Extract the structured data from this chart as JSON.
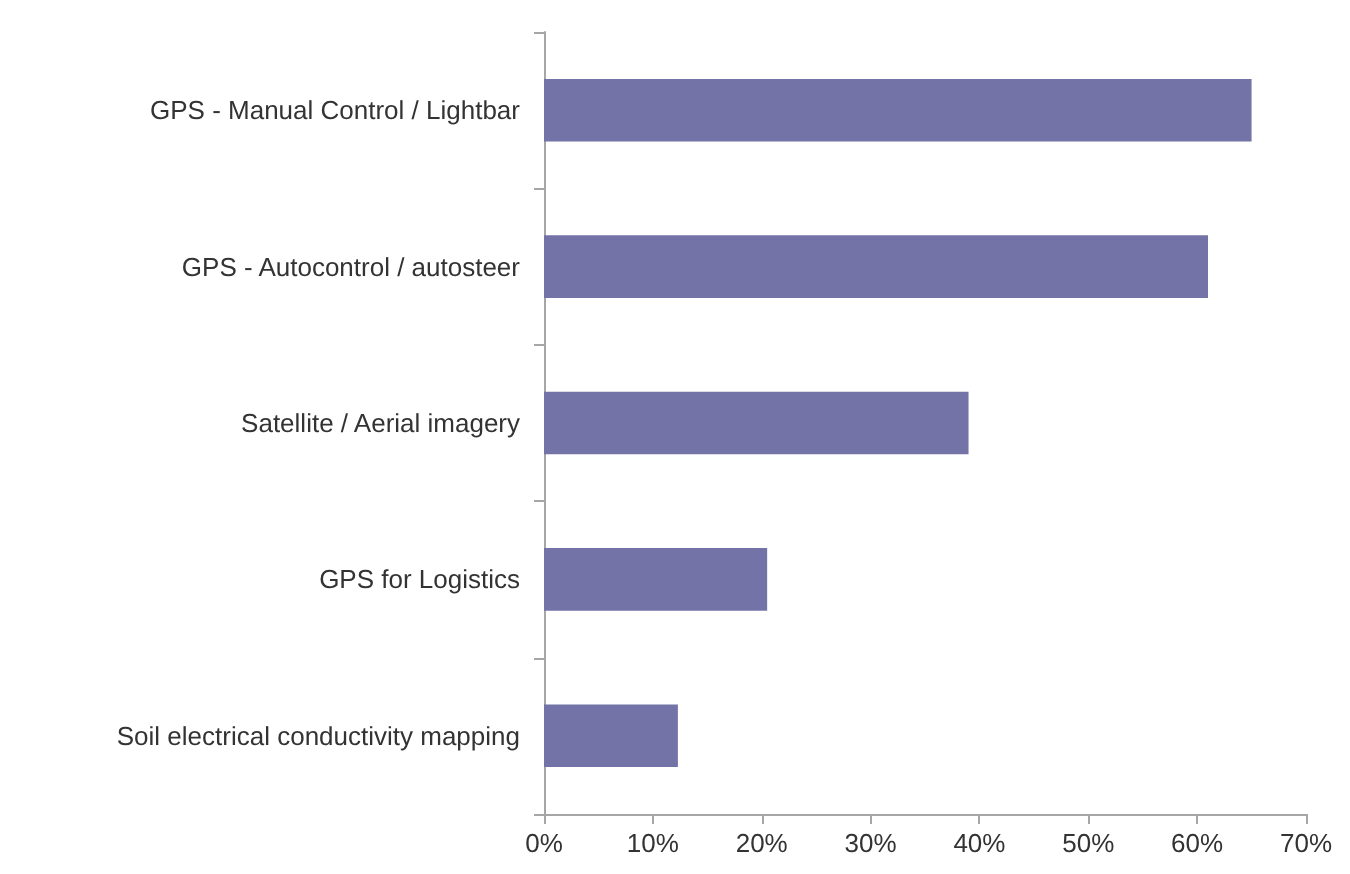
{
  "chart_data": {
    "type": "bar",
    "orientation": "horizontal",
    "categories": [
      "GPS - Manual Control / Lightbar",
      "GPS - Autocontrol / autosteer",
      "Satellite / Aerial imagery",
      "GPS for Logistics",
      "Soil electrical conductivity mapping"
    ],
    "values": [
      0.65,
      0.61,
      0.39,
      0.205,
      0.123
    ],
    "color": "#7373a8",
    "xlim": [
      0,
      0.7
    ],
    "xticks": [
      {
        "value": 0,
        "label": "0%"
      },
      {
        "value": 0.1,
        "label": "10%"
      },
      {
        "value": 0.2,
        "label": "20%"
      },
      {
        "value": 0.3,
        "label": "30%"
      },
      {
        "value": 0.4,
        "label": "40%"
      },
      {
        "value": 0.5,
        "label": "50%"
      },
      {
        "value": 0.6,
        "label": "60%"
      },
      {
        "value": 0.7,
        "label": "70%"
      }
    ],
    "grid": false
  }
}
